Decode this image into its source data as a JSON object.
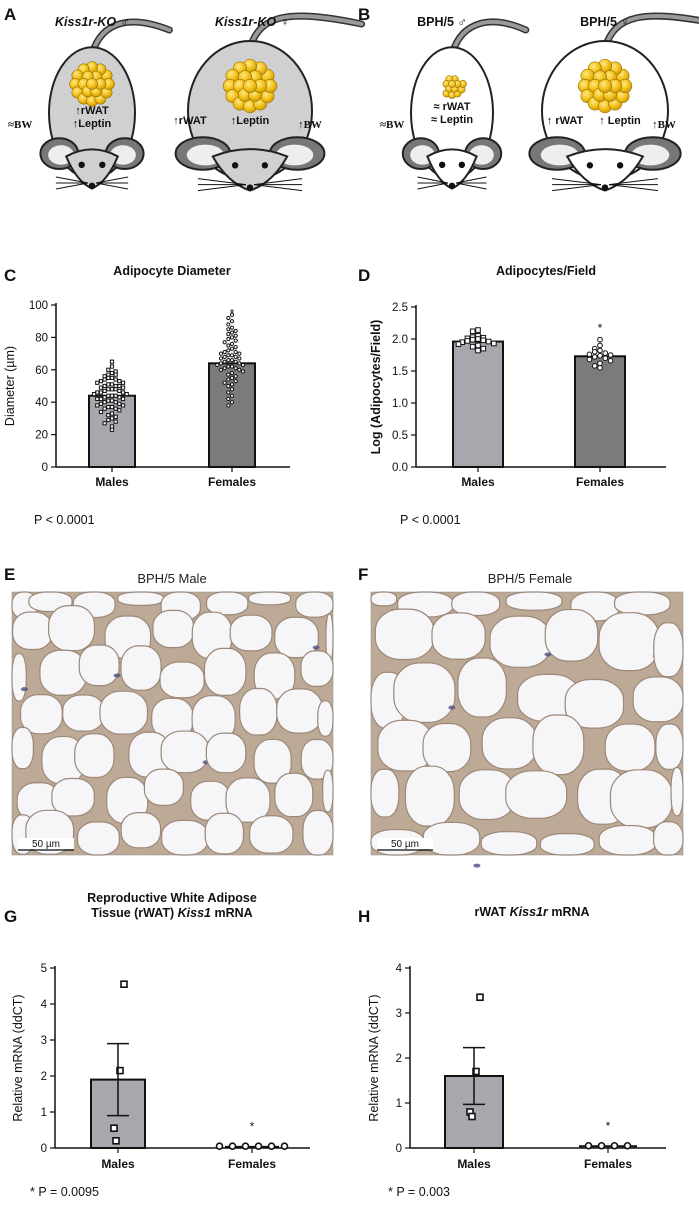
{
  "panels": {
    "A": {
      "letter": "A",
      "male_title": "Kiss1r-KO ♂",
      "female_title": "Kiss1r-KO ♀",
      "male_bw": "≈BW",
      "male_rwat": "↑rWAT",
      "male_leptin": "↑Leptin",
      "female_rwat": "↑rWAT",
      "female_leptin": "↑Leptin",
      "female_bw": "↑BW"
    },
    "B": {
      "letter": "B",
      "male_title": "BPH/5 ♂",
      "female_title": "BPH/5 ♀",
      "male_bw": "≈BW",
      "male_rwat": "≈ rWAT",
      "male_leptin": "≈ Leptin",
      "female_rwat": "↑ rWAT",
      "female_leptin": "↑ Leptin",
      "female_bw": "↑BW"
    },
    "C": {
      "letter": "C",
      "pvalue": "P < 0.0001"
    },
    "D": {
      "letter": "D",
      "pvalue": "P < 0.0001"
    },
    "E": {
      "letter": "E",
      "label": "BPH/5 Male",
      "scalebar": "50 µm"
    },
    "F": {
      "letter": "F",
      "label": "BPH/5 Female",
      "scalebar": "50 µm"
    },
    "G": {
      "letter": "G",
      "pvalue": "* P = 0.0095"
    },
    "H": {
      "letter": "H",
      "pvalue": "* P = 0.003"
    }
  },
  "colors": {
    "male_bar": "#a7a7ae",
    "female_bar": "#7b7b7b",
    "adipocyte": "#f2c21b",
    "mouse_ko": "#d0d0d0"
  },
  "chart_data": [
    {
      "id": "C",
      "type": "bar",
      "title": "Adipocyte Diameter",
      "ylabel": "Diameter (µm)",
      "xlabel": "",
      "categories": [
        "Males",
        "Females"
      ],
      "values": [
        44,
        64
      ],
      "ylim": [
        0,
        100
      ],
      "yticks": [
        "0",
        "20",
        "40",
        "60",
        "80",
        "100"
      ],
      "significance": "*",
      "points": [
        [
          65,
          62,
          60,
          59,
          58,
          57,
          57,
          56,
          55,
          55,
          54,
          54,
          53,
          53,
          52,
          52,
          51,
          51,
          50,
          50,
          50,
          49,
          49,
          48,
          48,
          48,
          47,
          47,
          46,
          46,
          46,
          45,
          45,
          44,
          44,
          44,
          43,
          43,
          42,
          42,
          42,
          41,
          41,
          40,
          40,
          39,
          39,
          38,
          38,
          37,
          37,
          36,
          36,
          35,
          34,
          33,
          32,
          31,
          30,
          29,
          28,
          27,
          25,
          23
        ],
        [
          94,
          92,
          90,
          88,
          86,
          85,
          84,
          83,
          82,
          81,
          80,
          79,
          78,
          77,
          76,
          75,
          74,
          73,
          72,
          71,
          71,
          70,
          70,
          69,
          69,
          68,
          68,
          67,
          67,
          66,
          66,
          65,
          65,
          64,
          64,
          63,
          63,
          62,
          62,
          61,
          61,
          60,
          60,
          59,
          58,
          57,
          56,
          55,
          54,
          53,
          52,
          51,
          50,
          48,
          46,
          44,
          42,
          40,
          38
        ]
      ]
    },
    {
      "id": "D",
      "type": "bar",
      "title": "Adipocytes/Field",
      "ylabel": "Log (Adipocytes/Field)",
      "xlabel": "",
      "categories": [
        "Males",
        "Females"
      ],
      "values": [
        1.96,
        1.73
      ],
      "ylim": [
        0,
        2.5
      ],
      "yticks": [
        "0.0",
        "0.5",
        "1.0",
        "1.5",
        "2.0",
        "2.5"
      ],
      "significance": "*",
      "points": [
        [
          2.14,
          2.12,
          2.05,
          2.03,
          2.02,
          2.01,
          2.0,
          1.99,
          1.98,
          1.97,
          1.96,
          1.95,
          1.93,
          1.92,
          1.9,
          1.88,
          1.85,
          1.82
        ],
        [
          1.99,
          1.9,
          1.85,
          1.82,
          1.8,
          1.78,
          1.76,
          1.75,
          1.74,
          1.72,
          1.7,
          1.68,
          1.66,
          1.62,
          1.58,
          1.55
        ]
      ]
    },
    {
      "id": "G",
      "type": "bar",
      "title": "Reproductive White Adipose Tissue (rWAT) Kiss1 mRNA",
      "ylabel": "Relative mRNA (ddCT)",
      "xlabel": "",
      "categories": [
        "Males",
        "Females"
      ],
      "values": [
        1.9,
        0.03
      ],
      "sem": [
        1.0,
        0.01
      ],
      "ylim": [
        0,
        5
      ],
      "yticks": [
        "0",
        "1",
        "2",
        "3",
        "4",
        "5"
      ],
      "significance": "*",
      "points": [
        [
          4.55,
          2.15,
          0.55,
          0.2
        ],
        [
          0.05,
          0.05,
          0.05,
          0.05,
          0.05,
          0.05
        ]
      ]
    },
    {
      "id": "H",
      "type": "bar",
      "title": "rWAT Kiss1r mRNA",
      "ylabel": "Relative mRNA (ddCT)",
      "xlabel": "",
      "categories": [
        "Males",
        "Females"
      ],
      "values": [
        1.6,
        0.04
      ],
      "sem": [
        0.63,
        0.01
      ],
      "ylim": [
        0,
        4
      ],
      "yticks": [
        "0",
        "1",
        "2",
        "3",
        "4"
      ],
      "significance": "*",
      "points": [
        [
          3.35,
          1.7,
          0.8,
          0.7
        ],
        [
          0.05,
          0.05,
          0.05,
          0.05
        ]
      ]
    }
  ]
}
